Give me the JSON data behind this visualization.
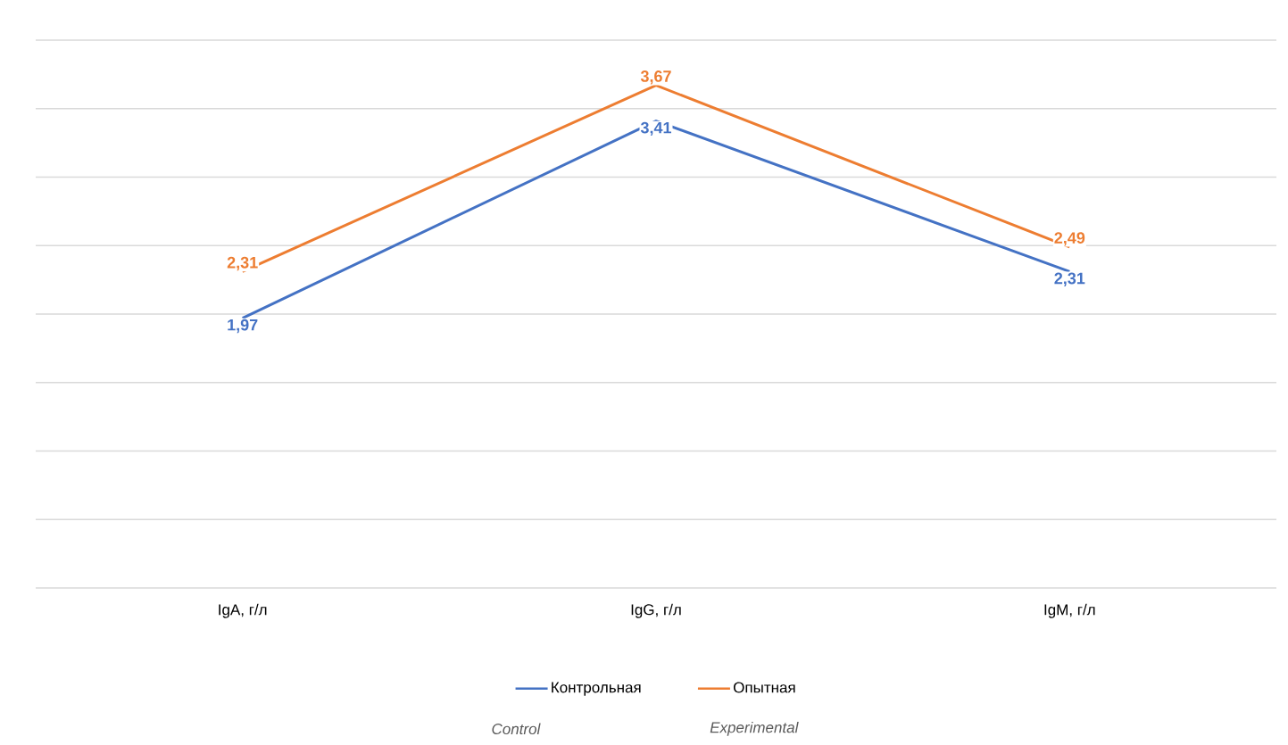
{
  "chart_data": {
    "type": "line",
    "categories": [
      "IgA, г/л",
      "IgG, г/л",
      "IgM, г/л"
    ],
    "series": [
      {
        "name": "Контрольная",
        "color": "#4472c4",
        "values": [
          1.97,
          3.41,
          2.31
        ],
        "value_labels": [
          "1,97",
          "3,41",
          "2,31"
        ]
      },
      {
        "name": "Опытная",
        "color": "#ed7d31",
        "values": [
          2.31,
          3.67,
          2.49
        ],
        "value_labels": [
          "2,31",
          "3,67",
          "2,49"
        ]
      }
    ],
    "ylim": [
      0,
      4
    ],
    "yticks": [
      {
        "value": 0,
        "label": null
      },
      {
        "value": 0.5,
        "label": null
      },
      {
        "value": 1,
        "label": null
      },
      {
        "value": 1.5,
        "label": null
      },
      {
        "value": 2,
        "label": null
      },
      {
        "value": 2.5,
        "label": null
      },
      {
        "value": 3,
        "label": null
      },
      {
        "value": 3.5,
        "label": null
      },
      {
        "value": 4,
        "label": null
      }
    ],
    "tick_labels": "x",
    "grid": "y",
    "legend": "bottom",
    "marker": "none",
    "line_style": "solid",
    "annotations": [
      "Control",
      "Experimental"
    ]
  }
}
